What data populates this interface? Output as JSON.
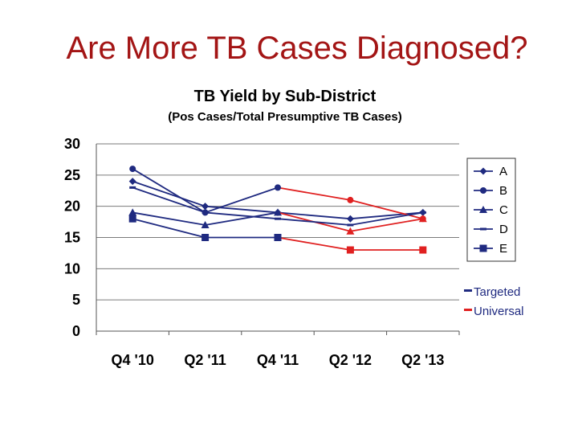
{
  "slide": {
    "title": "Are More TB Cases Diagnosed?"
  },
  "chart_data": {
    "type": "line",
    "title": "TB Yield by Sub-District",
    "subtitle": "(Pos Cases/Total Presumptive TB Cases)",
    "xlabel": "",
    "ylabel": "",
    "categories": [
      "Q4 '10",
      "Q2 '11",
      "Q4 '11",
      "Q2 '12",
      "Q2 '13"
    ],
    "ylim": [
      0,
      30
    ],
    "yticks": [
      0,
      5,
      10,
      15,
      20,
      25,
      30
    ],
    "grid": true,
    "legend_position": "right",
    "series": [
      {
        "name": "A",
        "marker": "diamond",
        "values": [
          24,
          20,
          19,
          18,
          19
        ],
        "segment_colors": [
          "#1f2a80",
          "#1f2a80",
          "#1f2a80",
          "#1f2a80"
        ]
      },
      {
        "name": "B",
        "marker": "circle",
        "values": [
          26,
          19,
          23,
          21,
          18
        ],
        "segment_colors": [
          "#1f2a80",
          "#1f2a80",
          "#e02020",
          "#e02020"
        ]
      },
      {
        "name": "C",
        "marker": "triangle",
        "values": [
          19,
          17,
          19,
          16,
          18
        ],
        "segment_colors": [
          "#1f2a80",
          "#1f2a80",
          "#e02020",
          "#e02020"
        ]
      },
      {
        "name": "D",
        "marker": "dash",
        "values": [
          23,
          19,
          18,
          17,
          19
        ],
        "segment_colors": [
          "#1f2a80",
          "#1f2a80",
          "#1f2a80",
          "#1f2a80"
        ]
      },
      {
        "name": "E",
        "marker": "square",
        "values": [
          18,
          15,
          15,
          13,
          13
        ],
        "segment_colors": [
          "#1f2a80",
          "#1f2a80",
          "#e02020",
          "#e02020"
        ]
      }
    ],
    "key": [
      {
        "label": "Targeted",
        "color": "#1f2a80"
      },
      {
        "label": "Universal",
        "color": "#e02020"
      }
    ],
    "colors": {
      "targeted": "#1f2a80",
      "universal": "#e02020",
      "title": "#a31515"
    }
  }
}
